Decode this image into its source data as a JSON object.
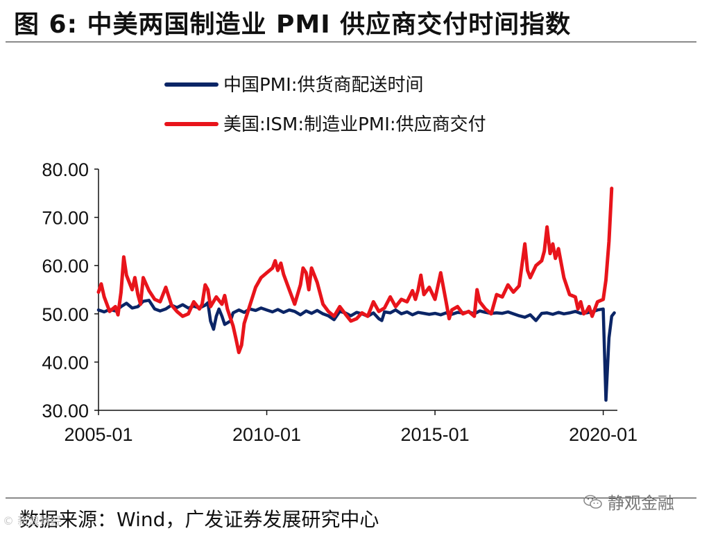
{
  "title": "图 6:  中美两国制造业 PMI 供应商交付时间指数",
  "source": "数据来源：Wind，广发证券发展研究中心",
  "watermark": "静观金融",
  "faint_mark": "© 新浪财经",
  "colors": {
    "china": "#0b2566",
    "us": "#e8141b",
    "axis": "#111111"
  },
  "chart_data": {
    "type": "line",
    "title": "",
    "xlabel": "",
    "ylabel": "",
    "xlim": [
      2005.0,
      2020.42
    ],
    "ylim": [
      30,
      80
    ],
    "yticks": [
      "80.00",
      "70.00",
      "60.00",
      "50.00",
      "40.00",
      "30.00"
    ],
    "ytick_values": [
      80,
      70,
      60,
      50,
      40,
      30
    ],
    "xticks": [
      "2005-01",
      "2010-01",
      "2015-01",
      "2020-01"
    ],
    "xtick_values": [
      2005.0,
      2010.0,
      2015.0,
      2020.0
    ],
    "legend_position": "top-center",
    "series": [
      {
        "name": "中国PMI:供货商配送时间",
        "color": "#0b2566",
        "points": [
          [
            2005.0,
            50.8
          ],
          [
            2005.17,
            50.4
          ],
          [
            2005.33,
            50.9
          ],
          [
            2005.5,
            50.6
          ],
          [
            2005.67,
            51.5
          ],
          [
            2005.83,
            52.2
          ],
          [
            2006.0,
            51.2
          ],
          [
            2006.17,
            51.5
          ],
          [
            2006.33,
            52.6
          ],
          [
            2006.5,
            52.8
          ],
          [
            2006.67,
            51.0
          ],
          [
            2006.83,
            50.6
          ],
          [
            2007.0,
            51.0
          ],
          [
            2007.17,
            51.8
          ],
          [
            2007.33,
            51.3
          ],
          [
            2007.5,
            51.9
          ],
          [
            2007.67,
            51.2
          ],
          [
            2007.83,
            51.6
          ],
          [
            2008.0,
            51.2
          ],
          [
            2008.17,
            51.8
          ],
          [
            2008.25,
            52.3
          ],
          [
            2008.33,
            48.5
          ],
          [
            2008.42,
            46.8
          ],
          [
            2008.5,
            49.5
          ],
          [
            2008.58,
            51.0
          ],
          [
            2008.67,
            49.5
          ],
          [
            2008.75,
            47.8
          ],
          [
            2008.92,
            48.5
          ],
          [
            2009.0,
            50.2
          ],
          [
            2009.17,
            50.8
          ],
          [
            2009.33,
            50.3
          ],
          [
            2009.5,
            51.0
          ],
          [
            2009.67,
            50.7
          ],
          [
            2009.83,
            51.2
          ],
          [
            2010.0,
            50.8
          ],
          [
            2010.17,
            50.4
          ],
          [
            2010.33,
            50.9
          ],
          [
            2010.5,
            50.3
          ],
          [
            2010.67,
            50.8
          ],
          [
            2010.83,
            50.5
          ],
          [
            2011.0,
            49.8
          ],
          [
            2011.17,
            50.6
          ],
          [
            2011.33,
            50.1
          ],
          [
            2011.5,
            50.7
          ],
          [
            2011.67,
            50.0
          ],
          [
            2011.83,
            49.6
          ],
          [
            2012.0,
            48.8
          ],
          [
            2012.17,
            50.5
          ],
          [
            2012.33,
            50.2
          ],
          [
            2012.5,
            49.6
          ],
          [
            2012.67,
            50.3
          ],
          [
            2012.83,
            50.0
          ],
          [
            2013.0,
            49.5
          ],
          [
            2013.17,
            50.2
          ],
          [
            2013.33,
            49.0
          ],
          [
            2013.42,
            48.6
          ],
          [
            2013.5,
            50.4
          ],
          [
            2013.67,
            50.2
          ],
          [
            2013.83,
            50.8
          ],
          [
            2014.0,
            50.0
          ],
          [
            2014.17,
            50.4
          ],
          [
            2014.33,
            49.8
          ],
          [
            2014.5,
            50.3
          ],
          [
            2014.67,
            50.1
          ],
          [
            2014.83,
            49.9
          ],
          [
            2015.0,
            50.1
          ],
          [
            2015.17,
            49.8
          ],
          [
            2015.33,
            50.2
          ],
          [
            2015.5,
            49.9
          ],
          [
            2015.67,
            50.3
          ],
          [
            2015.83,
            50.2
          ],
          [
            2016.0,
            50.4
          ],
          [
            2016.17,
            50.0
          ],
          [
            2016.33,
            50.6
          ],
          [
            2016.5,
            50.3
          ],
          [
            2016.67,
            50.1
          ],
          [
            2016.83,
            50.2
          ],
          [
            2017.0,
            50.1
          ],
          [
            2017.17,
            50.4
          ],
          [
            2017.33,
            50.0
          ],
          [
            2017.5,
            49.6
          ],
          [
            2017.67,
            49.3
          ],
          [
            2017.83,
            49.8
          ],
          [
            2018.0,
            48.6
          ],
          [
            2018.17,
            50.1
          ],
          [
            2018.33,
            50.2
          ],
          [
            2018.5,
            49.9
          ],
          [
            2018.67,
            50.3
          ],
          [
            2018.83,
            50.0
          ],
          [
            2019.0,
            50.2
          ],
          [
            2019.17,
            50.5
          ],
          [
            2019.33,
            50.1
          ],
          [
            2019.5,
            50.2
          ],
          [
            2019.67,
            50.4
          ],
          [
            2019.83,
            50.8
          ],
          [
            2020.0,
            51.0
          ],
          [
            2020.08,
            32.1
          ],
          [
            2020.17,
            45.0
          ],
          [
            2020.25,
            49.5
          ],
          [
            2020.33,
            50.2
          ]
        ]
      },
      {
        "name": "美国:ISM:制造业PMI:供应商交付",
        "color": "#e8141b",
        "points": [
          [
            2005.0,
            54.5
          ],
          [
            2005.08,
            56.2
          ],
          [
            2005.17,
            53.5
          ],
          [
            2005.33,
            50.5
          ],
          [
            2005.5,
            51.5
          ],
          [
            2005.58,
            49.8
          ],
          [
            2005.67,
            54.5
          ],
          [
            2005.75,
            61.8
          ],
          [
            2005.83,
            58.0
          ],
          [
            2006.0,
            55.0
          ],
          [
            2006.08,
            57.5
          ],
          [
            2006.17,
            54.0
          ],
          [
            2006.25,
            52.0
          ],
          [
            2006.33,
            57.5
          ],
          [
            2006.5,
            54.8
          ],
          [
            2006.67,
            53.0
          ],
          [
            2006.83,
            52.5
          ],
          [
            2007.0,
            55.5
          ],
          [
            2007.17,
            51.8
          ],
          [
            2007.33,
            50.5
          ],
          [
            2007.5,
            49.5
          ],
          [
            2007.67,
            50.0
          ],
          [
            2007.83,
            52.5
          ],
          [
            2008.0,
            51.0
          ],
          [
            2008.08,
            52.0
          ],
          [
            2008.17,
            56.0
          ],
          [
            2008.25,
            55.0
          ],
          [
            2008.33,
            51.5
          ],
          [
            2008.5,
            53.5
          ],
          [
            2008.67,
            52.0
          ],
          [
            2008.75,
            53.8
          ],
          [
            2008.83,
            51.0
          ],
          [
            2009.0,
            47.5
          ],
          [
            2009.08,
            45.0
          ],
          [
            2009.17,
            42.0
          ],
          [
            2009.25,
            43.5
          ],
          [
            2009.33,
            48.0
          ],
          [
            2009.5,
            51.8
          ],
          [
            2009.67,
            55.5
          ],
          [
            2009.83,
            57.5
          ],
          [
            2010.0,
            58.5
          ],
          [
            2010.17,
            59.5
          ],
          [
            2010.25,
            61.0
          ],
          [
            2010.33,
            59.0
          ],
          [
            2010.42,
            60.5
          ],
          [
            2010.5,
            58.2
          ],
          [
            2010.67,
            55.0
          ],
          [
            2010.83,
            52.0
          ],
          [
            2011.0,
            56.0
          ],
          [
            2011.08,
            59.5
          ],
          [
            2011.17,
            58.5
          ],
          [
            2011.25,
            55.0
          ],
          [
            2011.33,
            59.5
          ],
          [
            2011.5,
            56.5
          ],
          [
            2011.67,
            52.0
          ],
          [
            2011.83,
            50.5
          ],
          [
            2012.0,
            49.5
          ],
          [
            2012.17,
            51.5
          ],
          [
            2012.33,
            50.0
          ],
          [
            2012.5,
            48.5
          ],
          [
            2012.67,
            49.0
          ],
          [
            2012.83,
            50.2
          ],
          [
            2013.0,
            49.5
          ],
          [
            2013.17,
            52.5
          ],
          [
            2013.33,
            50.5
          ],
          [
            2013.5,
            51.2
          ],
          [
            2013.67,
            53.5
          ],
          [
            2013.83,
            51.5
          ],
          [
            2014.0,
            53.0
          ],
          [
            2014.17,
            52.5
          ],
          [
            2014.33,
            54.8
          ],
          [
            2014.42,
            53.0
          ],
          [
            2014.5,
            55.0
          ],
          [
            2014.58,
            58.0
          ],
          [
            2014.67,
            54.0
          ],
          [
            2014.83,
            55.5
          ],
          [
            2015.0,
            53.0
          ],
          [
            2015.17,
            58.5
          ],
          [
            2015.33,
            52.5
          ],
          [
            2015.42,
            49.0
          ],
          [
            2015.5,
            50.8
          ],
          [
            2015.67,
            51.5
          ],
          [
            2015.83,
            50.0
          ],
          [
            2016.0,
            50.5
          ],
          [
            2016.17,
            49.5
          ],
          [
            2016.25,
            55.0
          ],
          [
            2016.33,
            52.5
          ],
          [
            2016.5,
            51.0
          ],
          [
            2016.67,
            50.0
          ],
          [
            2016.83,
            54.0
          ],
          [
            2017.0,
            53.5
          ],
          [
            2017.17,
            56.0
          ],
          [
            2017.33,
            54.5
          ],
          [
            2017.5,
            55.8
          ],
          [
            2017.67,
            64.5
          ],
          [
            2017.75,
            59.0
          ],
          [
            2017.83,
            57.5
          ],
          [
            2018.0,
            60.0
          ],
          [
            2018.17,
            61.0
          ],
          [
            2018.25,
            63.0
          ],
          [
            2018.33,
            68.0
          ],
          [
            2018.42,
            62.5
          ],
          [
            2018.5,
            64.5
          ],
          [
            2018.58,
            61.5
          ],
          [
            2018.67,
            63.5
          ],
          [
            2018.83,
            57.5
          ],
          [
            2019.0,
            54.0
          ],
          [
            2019.17,
            53.5
          ],
          [
            2019.25,
            51.0
          ],
          [
            2019.33,
            52.5
          ],
          [
            2019.42,
            50.0
          ],
          [
            2019.5,
            50.5
          ],
          [
            2019.58,
            51.5
          ],
          [
            2019.67,
            49.5
          ],
          [
            2019.83,
            52.5
          ],
          [
            2020.0,
            53.0
          ],
          [
            2020.08,
            57.0
          ],
          [
            2020.17,
            65.0
          ],
          [
            2020.25,
            76.0
          ]
        ]
      }
    ]
  }
}
